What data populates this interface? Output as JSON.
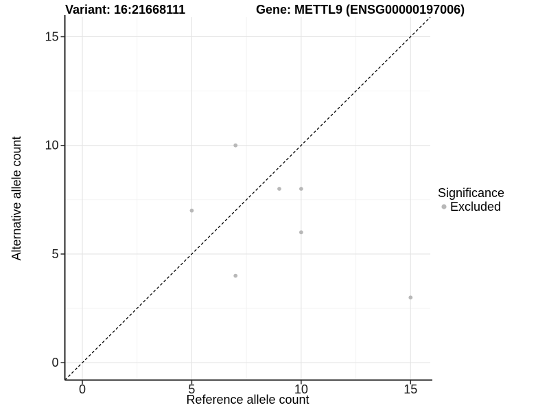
{
  "header": {
    "variant_title": "Variant: 16:21668111",
    "gene_title": "Gene: METTL9 (ENSG00000197006)"
  },
  "chart_data": {
    "type": "scatter",
    "xlabel": "Reference allele count",
    "ylabel": "Alternative allele count",
    "xlim": [
      -0.8,
      15.9
    ],
    "ylim": [
      -0.8,
      15.9
    ],
    "xticks": [
      0,
      5,
      10,
      15
    ],
    "yticks": [
      0,
      5,
      10,
      15
    ],
    "x_minor_ticks": [
      2.5,
      7.5,
      12.5
    ],
    "y_minor_ticks": [
      2.5,
      7.5,
      12.5
    ],
    "grid": "major_and_minor",
    "legend_position": "right-middle",
    "series": [
      {
        "name": "Excluded",
        "marker": "circle",
        "color": "#b8b8b8",
        "points": [
          [
            5,
            7
          ],
          [
            7,
            4
          ],
          [
            7,
            10
          ],
          [
            9,
            8
          ],
          [
            10,
            6
          ],
          [
            10,
            8
          ],
          [
            15,
            3
          ]
        ]
      }
    ],
    "identity_line": {
      "type": "abline",
      "slope": 1,
      "intercept": 0,
      "style": "dashed",
      "color": "#000000"
    },
    "legend": {
      "title": "Significance",
      "entries": [
        {
          "label": "Excluded",
          "color": "#b8b8b8"
        }
      ]
    }
  },
  "colors": {
    "background": "#ffffff",
    "grid_major": "#e4e4e4",
    "grid_minor": "#f2f2f2",
    "axis_line": "#262626",
    "tick_mark": "#262626",
    "point_fill": "#b8b8b8",
    "dashed_line": "#000000"
  }
}
